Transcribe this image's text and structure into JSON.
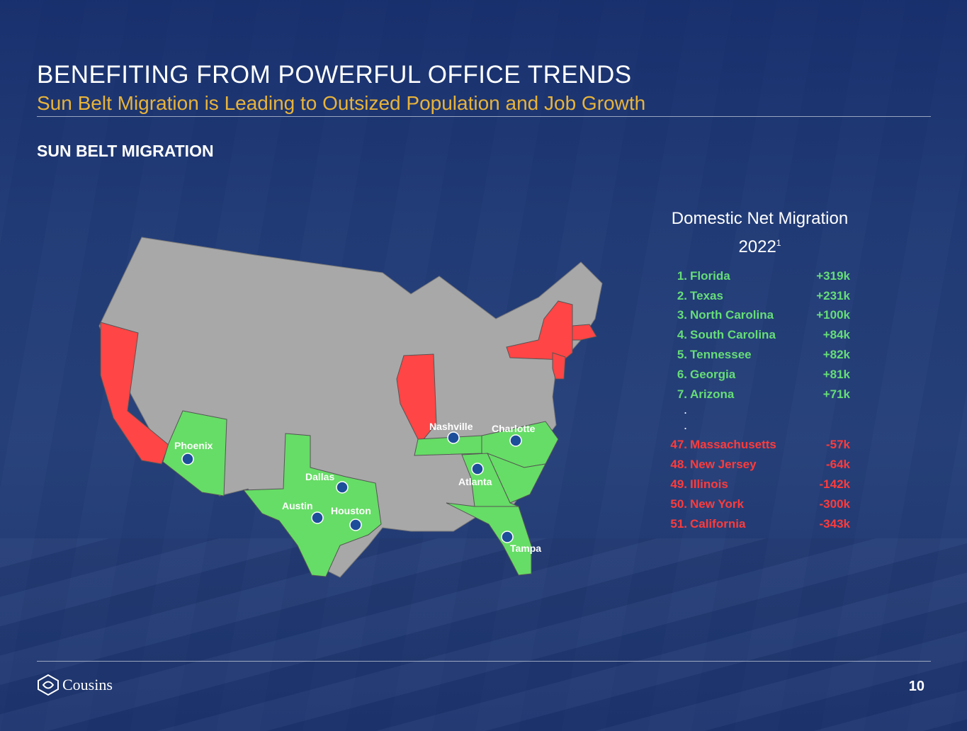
{
  "header": {
    "title": "BENEFITING FROM POWERFUL OFFICE TRENDS",
    "subtitle": "Sun Belt Migration is Leading to Outsized Population and Job Growth"
  },
  "section_label": "SUN BELT MIGRATION",
  "map": {
    "colors": {
      "neutral": "#a8a8a8",
      "gain": "#66dd66",
      "loss": "#ff4545",
      "marker": "#1d4e9a"
    },
    "cities": [
      "Phoenix",
      "Dallas",
      "Austin",
      "Houston",
      "Nashville",
      "Charlotte",
      "Atlanta",
      "Tampa"
    ],
    "marker_icon": "cousins-logo-icon"
  },
  "migration": {
    "title": "Domestic Net Migration",
    "year": "2022",
    "footnote": "1",
    "top": [
      {
        "rank": "1.",
        "state": "Florida",
        "value": "+319k"
      },
      {
        "rank": "2.",
        "state": "Texas",
        "value": "+231k"
      },
      {
        "rank": "3.",
        "state": "North Carolina",
        "value": "+100k"
      },
      {
        "rank": "4.",
        "state": "South Carolina",
        "value": "+84k"
      },
      {
        "rank": "5.",
        "state": "Tennessee",
        "value": "+82k"
      },
      {
        "rank": "6.",
        "state": "Georgia",
        "value": "+81k"
      },
      {
        "rank": "7.",
        "state": "Arizona",
        "value": "+71k"
      }
    ],
    "ellipsis": ".",
    "bottom": [
      {
        "rank": "47.",
        "state": "Massachusetts",
        "value": "-57k"
      },
      {
        "rank": "48.",
        "state": "New Jersey",
        "value": "-64k"
      },
      {
        "rank": "49.",
        "state": "Illinois",
        "value": "-142k"
      },
      {
        "rank": "50.",
        "state": "New York",
        "value": "-300k"
      },
      {
        "rank": "51.",
        "state": "California",
        "value": "-343k"
      }
    ],
    "colors": {
      "positive": "#66dd77",
      "negative": "#ff3b3b"
    }
  },
  "footer": {
    "logo_text": "Cousins",
    "logo_icon": "cousins-logo-icon",
    "page_number": "10"
  }
}
